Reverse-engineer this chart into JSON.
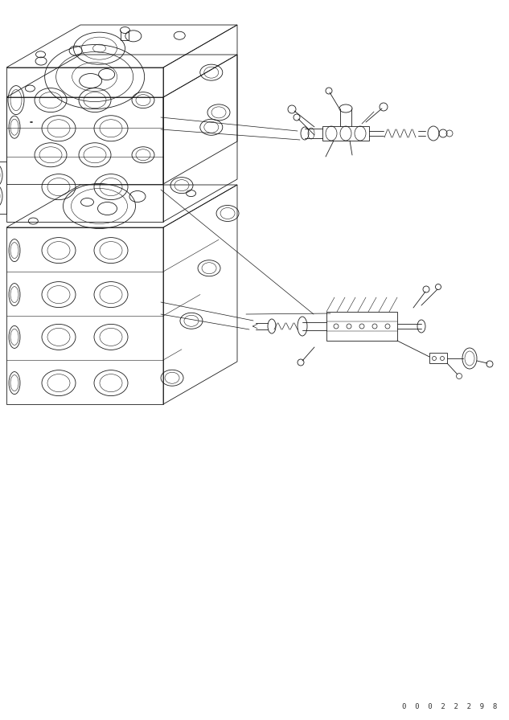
{
  "background_color": "#ffffff",
  "line_color": "#1a1a1a",
  "fig_width": 6.33,
  "fig_height": 8.96,
  "dpi": 100,
  "watermark": "0  0  0  2  2  2  9  8"
}
